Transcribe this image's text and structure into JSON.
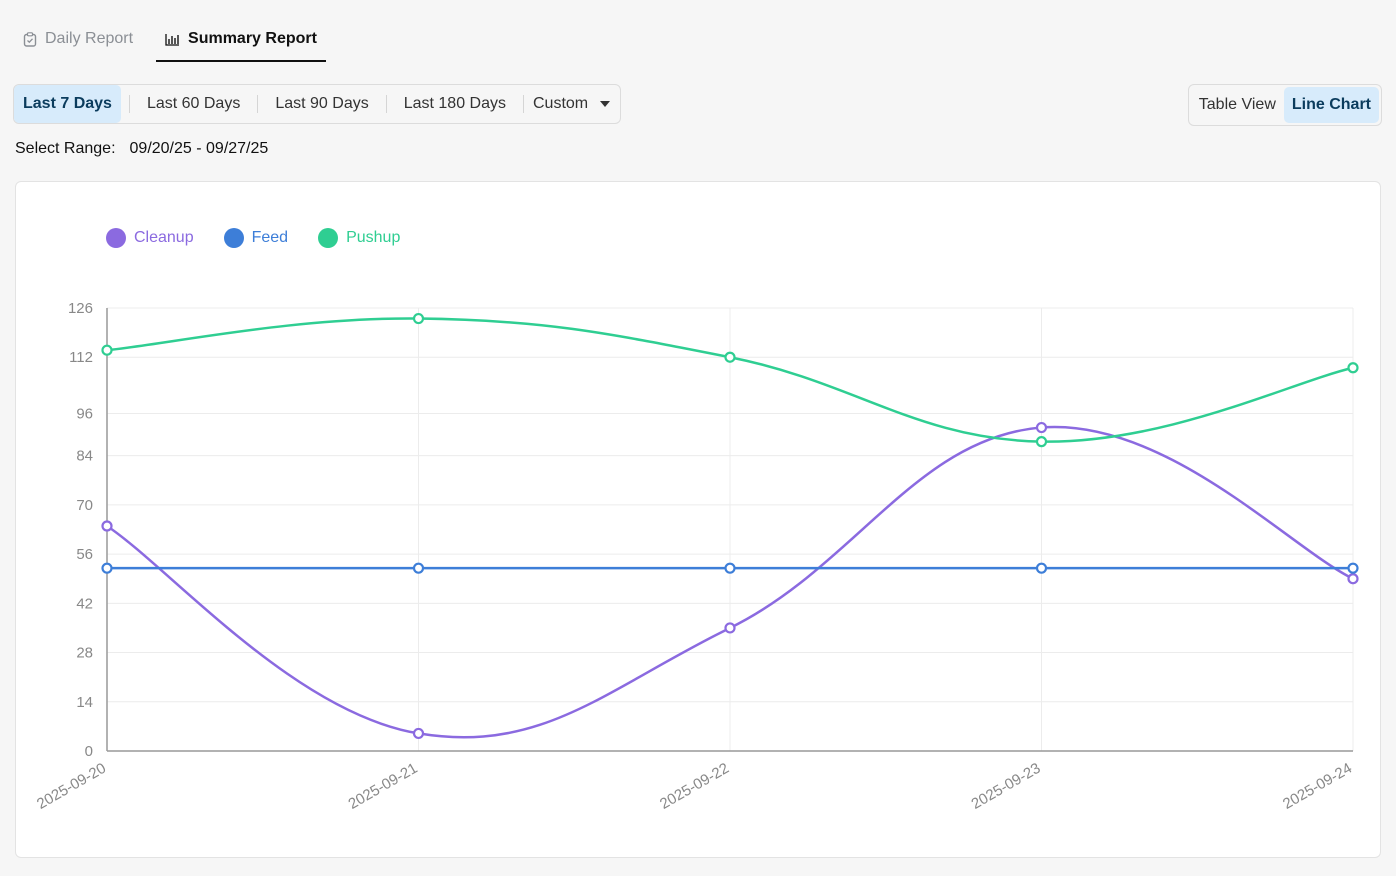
{
  "tabs": [
    {
      "label": "Daily Report",
      "icon": "clipboard-icon",
      "active": false
    },
    {
      "label": "Summary Report",
      "icon": "bar-chart-icon",
      "active": true
    }
  ],
  "range_options": [
    "Last 7 Days",
    "Last 60 Days",
    "Last 90 Days",
    "Last 180 Days"
  ],
  "range_selected": "Last 7 Days",
  "custom_label": "Custom",
  "views": {
    "table": "Table View",
    "chart": "Line Chart",
    "selected": "Line Chart"
  },
  "select_range": {
    "label": "Select Range:",
    "value": "09/20/25 - 09/27/25"
  },
  "colors": {
    "cleanup": "#8b6ae0",
    "feed": "#3d7ed8",
    "pushup": "#2fce92",
    "active_bg": "#d7ebfb"
  },
  "chart_data": {
    "type": "line",
    "curve": "smooth",
    "categories": [
      "2025-09-20",
      "2025-09-21",
      "2025-09-22",
      "2025-09-23",
      "2025-09-24"
    ],
    "yticks": [
      0,
      14,
      28,
      42,
      56,
      70,
      84,
      96,
      112,
      126
    ],
    "ylim": [
      0,
      126
    ],
    "grid": true,
    "legend": "top-left",
    "series": [
      {
        "name": "Cleanup",
        "color": "#8b6ae0",
        "values": [
          64,
          5,
          35,
          92,
          49
        ]
      },
      {
        "name": "Feed",
        "color": "#3d7ed8",
        "values": [
          52,
          52,
          52,
          52,
          52
        ]
      },
      {
        "name": "Pushup",
        "color": "#2fce92",
        "values": [
          114,
          123,
          112,
          88,
          109
        ]
      }
    ]
  }
}
